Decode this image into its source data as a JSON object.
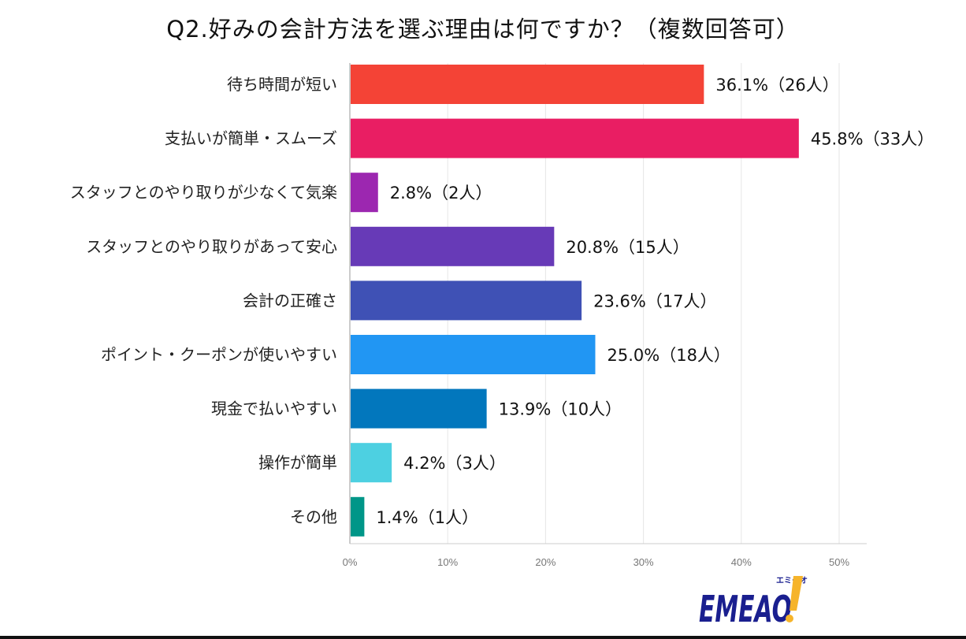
{
  "chart_data": {
    "type": "bar",
    "orientation": "horizontal",
    "title": "Q2.好みの会計方法を選ぶ理由は何ですか？（複数回答可）",
    "categories": [
      "待ち時間が短い",
      "支払いが簡単・スムーズ",
      "スタッフとのやり取りが少なくて気楽",
      "スタッフとのやり取りがあって安心",
      "会計の正確さ",
      "ポイント・クーポンが使いやすい",
      "現金で払いやすい",
      "操作が簡単",
      "その他"
    ],
    "values": [
      36.1,
      45.8,
      2.8,
      20.8,
      23.6,
      25.0,
      13.9,
      4.2,
      1.4
    ],
    "counts": [
      26,
      33,
      2,
      15,
      17,
      18,
      10,
      3,
      1
    ],
    "data_labels": [
      "36.1%（26人）",
      "45.8%（33人）",
      "2.8%（2人）",
      "20.8%（15人）",
      "23.6%（17人）",
      "25.0%（18人）",
      "13.9%（10人）",
      "4.2%（3人）",
      "1.4%（1人）"
    ],
    "colors": [
      "#f44336",
      "#e91e63",
      "#9c27b0",
      "#673ab7",
      "#3f51b5",
      "#2196f3",
      "#0277bd",
      "#4dd0e1",
      "#009688"
    ],
    "xlim": [
      0,
      50
    ],
    "x_ticks": [
      "0%",
      "10%",
      "20%",
      "30%",
      "40%",
      "50%"
    ],
    "xlabel": "",
    "ylabel": "",
    "grid": true,
    "legend": "none"
  },
  "logo": {
    "text": "EMEAO!",
    "kana": "エミーオ"
  }
}
